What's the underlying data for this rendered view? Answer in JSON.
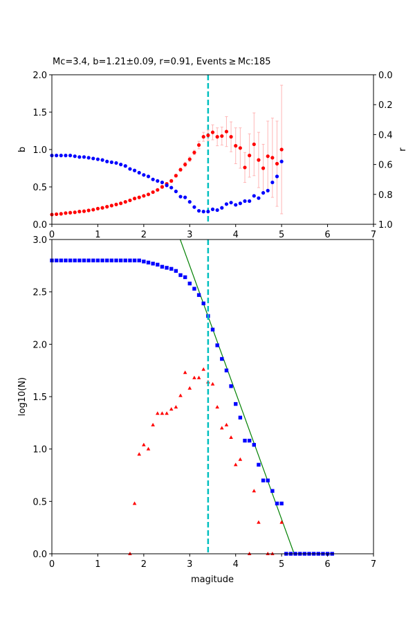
{
  "chart_data": [
    {
      "type": "scatter",
      "title": "Mc=3.4, b=1.21±0.09, r=0.91, Events ≥ Mc:185",
      "xlabel": "",
      "ylabel": "b",
      "y2label": "r",
      "xlim": [
        0,
        7
      ],
      "ylim": [
        0,
        2.0
      ],
      "y2lim": [
        1.0,
        0.0
      ],
      "xticks": [
        "0",
        "1",
        "2",
        "3",
        "4",
        "5",
        "6",
        "7"
      ],
      "yticks": [
        "0.0",
        "0.5",
        "1.0",
        "1.5",
        "2.0"
      ],
      "y2ticks": [
        "0.0",
        "0.2",
        "0.4",
        "0.6",
        "0.8",
        "1.0"
      ],
      "mc_line": 3.4,
      "x": [
        0.0,
        0.1,
        0.2,
        0.3,
        0.4,
        0.5,
        0.6,
        0.7,
        0.8,
        0.9,
        1.0,
        1.1,
        1.2,
        1.3,
        1.4,
        1.5,
        1.6,
        1.7,
        1.8,
        1.9,
        2.0,
        2.1,
        2.2,
        2.3,
        2.4,
        2.5,
        2.6,
        2.7,
        2.8,
        2.9,
        3.0,
        3.1,
        3.2,
        3.3,
        3.4,
        3.5,
        3.6,
        3.7,
        3.8,
        3.9,
        4.0,
        4.1,
        4.2,
        4.3,
        4.4,
        4.5,
        4.6,
        4.7,
        4.8,
        4.9,
        5.0
      ],
      "series": [
        {
          "name": "b",
          "axis": "left",
          "color": "#ff0000",
          "values": [
            0.13,
            0.135,
            0.14,
            0.15,
            0.155,
            0.16,
            0.17,
            0.175,
            0.185,
            0.195,
            0.21,
            0.22,
            0.235,
            0.25,
            0.265,
            0.28,
            0.3,
            0.32,
            0.345,
            0.36,
            0.38,
            0.4,
            0.43,
            0.46,
            0.5,
            0.54,
            0.58,
            0.65,
            0.73,
            0.8,
            0.87,
            0.96,
            1.06,
            1.17,
            1.19,
            1.23,
            1.17,
            1.18,
            1.24,
            1.17,
            1.05,
            1.02,
            0.76,
            0.92,
            1.07,
            0.86,
            0.75,
            0.91,
            0.89,
            0.81,
            1.0
          ],
          "errors": [
            0.01,
            0.01,
            0.01,
            0.01,
            0.01,
            0.01,
            0.01,
            0.01,
            0.01,
            0.01,
            0.01,
            0.01,
            0.01,
            0.01,
            0.01,
            0.01,
            0.01,
            0.01,
            0.01,
            0.01,
            0.01,
            0.01,
            0.01,
            0.01,
            0.02,
            0.02,
            0.02,
            0.02,
            0.02,
            0.03,
            0.03,
            0.03,
            0.05,
            0.06,
            0.07,
            0.1,
            0.12,
            0.12,
            0.2,
            0.2,
            0.24,
            0.27,
            0.2,
            0.29,
            0.42,
            0.37,
            0.32,
            0.47,
            0.53,
            0.57,
            0.86
          ],
          "error_color": "#ffb6b6"
        },
        {
          "name": "r",
          "axis": "right",
          "color": "#0000ff",
          "values": [
            0.54,
            0.54,
            0.54,
            0.54,
            0.54,
            0.545,
            0.55,
            0.55,
            0.555,
            0.56,
            0.565,
            0.57,
            0.58,
            0.585,
            0.59,
            0.6,
            0.61,
            0.63,
            0.64,
            0.655,
            0.67,
            0.68,
            0.7,
            0.71,
            0.72,
            0.74,
            0.755,
            0.78,
            0.815,
            0.82,
            0.85,
            0.885,
            0.91,
            0.915,
            0.915,
            0.9,
            0.905,
            0.89,
            0.865,
            0.855,
            0.87,
            0.86,
            0.845,
            0.845,
            0.81,
            0.825,
            0.79,
            0.775,
            0.72,
            0.68,
            0.58
          ]
        }
      ]
    },
    {
      "type": "scatter",
      "title": "",
      "xlabel": "magitude",
      "ylabel": "log10(N)",
      "xlim": [
        0,
        7
      ],
      "ylim": [
        0,
        3.0
      ],
      "xticks": [
        "0",
        "1",
        "2",
        "3",
        "4",
        "5",
        "6",
        "7"
      ],
      "yticks": [
        "0.0",
        "0.5",
        "1.0",
        "1.5",
        "2.0",
        "2.5",
        "3.0"
      ],
      "mc_line": 3.4,
      "fit_line": {
        "a": 6.38,
        "b": 1.21,
        "color": "#008000"
      },
      "series": [
        {
          "name": "cumulative",
          "marker": "square",
          "color": "#0000ff",
          "x": [
            0.0,
            0.1,
            0.2,
            0.3,
            0.4,
            0.5,
            0.6,
            0.7,
            0.8,
            0.9,
            1.0,
            1.1,
            1.2,
            1.3,
            1.4,
            1.5,
            1.6,
            1.7,
            1.8,
            1.9,
            2.0,
            2.1,
            2.2,
            2.3,
            2.4,
            2.5,
            2.6,
            2.7,
            2.8,
            2.9,
            3.0,
            3.1,
            3.2,
            3.3,
            3.4,
            3.5,
            3.6,
            3.7,
            3.8,
            3.9,
            4.0,
            4.1,
            4.2,
            4.3,
            4.4,
            4.5,
            4.6,
            4.7,
            4.8,
            4.9,
            5.0,
            5.1,
            5.2,
            5.3,
            5.4,
            5.5,
            5.6,
            5.7,
            5.8,
            5.9,
            6.0,
            6.1
          ],
          "values": [
            2.8,
            2.8,
            2.8,
            2.8,
            2.8,
            2.8,
            2.8,
            2.8,
            2.8,
            2.8,
            2.8,
            2.8,
            2.8,
            2.8,
            2.8,
            2.8,
            2.8,
            2.8,
            2.8,
            2.8,
            2.79,
            2.78,
            2.77,
            2.76,
            2.74,
            2.73,
            2.72,
            2.7,
            2.66,
            2.64,
            2.58,
            2.53,
            2.47,
            2.39,
            2.27,
            2.14,
            1.99,
            1.86,
            1.75,
            1.6,
            1.43,
            1.3,
            1.08,
            1.08,
            1.04,
            0.85,
            0.7,
            0.7,
            0.6,
            0.48,
            0.48,
            0,
            0,
            0,
            0,
            0,
            0,
            0,
            0,
            0,
            0,
            0
          ]
        },
        {
          "name": "non-cumulative",
          "marker": "triangle",
          "color": "#ff0000",
          "x": [
            1.7,
            1.8,
            1.9,
            2.0,
            2.1,
            2.2,
            2.3,
            2.4,
            2.5,
            2.6,
            2.7,
            2.8,
            2.9,
            3.0,
            3.1,
            3.2,
            3.3,
            3.4,
            3.5,
            3.6,
            3.7,
            3.8,
            3.9,
            4.0,
            4.1,
            4.3,
            4.4,
            4.5,
            4.7,
            4.8,
            5.0
          ],
          "values": [
            0,
            0.48,
            0.95,
            1.04,
            1.0,
            1.23,
            1.34,
            1.34,
            1.34,
            1.38,
            1.4,
            1.51,
            1.73,
            1.58,
            1.68,
            1.68,
            1.76,
            1.64,
            1.62,
            1.4,
            1.2,
            1.23,
            1.11,
            0.85,
            0.9,
            0,
            0.6,
            0.3,
            0,
            0,
            0.3
          ]
        }
      ]
    }
  ]
}
